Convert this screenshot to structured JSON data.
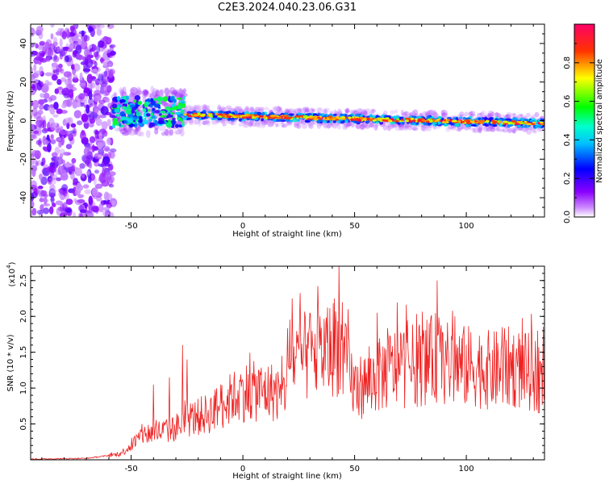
{
  "figure": {
    "title": "C2E3.2024.040.23.06.G31"
  },
  "chart_data": [
    {
      "type": "heatmap",
      "title": "",
      "xlabel": "Height of straight line (km)",
      "ylabel": "Frequency (Hz)",
      "xlim": [
        -95,
        135
      ],
      "ylim": [
        -50,
        50
      ],
      "x_ticks": [
        -50,
        0,
        50,
        100
      ],
      "y_ticks": [
        -40,
        -20,
        0,
        20,
        40
      ],
      "colorbar": {
        "label": "Normalized spectral amplitude",
        "range": [
          0,
          1
        ],
        "ticks": [
          "0.0",
          "0.2",
          "0.4",
          "0.6",
          "0.8"
        ],
        "colors": [
          "#ffffff",
          "#8b00ff",
          "#0000ff",
          "#00ffff",
          "#00ff00",
          "#ffff00",
          "#ff0000",
          "#ff0066"
        ]
      },
      "features": {
        "noise_region_x": [
          -95,
          -58
        ],
        "noise_frequency_spread": [
          -50,
          50
        ],
        "transition_region_x": [
          -58,
          -26
        ],
        "transition_frequency_range": [
          -3,
          12
        ],
        "carrier_region_x": [
          -26,
          135
        ],
        "carrier_frequency_start": 3,
        "carrier_frequency_end": -1.5
      }
    },
    {
      "type": "line",
      "title": "",
      "xlabel": "Height of straight line (km)",
      "ylabel": "SNR (10 * v/v)",
      "y_scale_label": "(x10",
      "y_scale_exponent": "4",
      "y_scale_suffix": ")",
      "xlim": [
        -95,
        135
      ],
      "ylim": [
        0,
        2.7
      ],
      "x_ticks": [
        -50,
        0,
        50,
        100
      ],
      "y_ticks": [
        "0.5",
        "1.0",
        "1.5",
        "2.0",
        "2.5"
      ],
      "series": [
        {
          "color": "#ee2222",
          "envelope": {
            "x": [
              -95,
              -70,
              -55,
              -50,
              -45,
              -40,
              -35,
              -30,
              -25,
              -20,
              -15,
              -10,
              -5,
              0,
              5,
              10,
              15,
              18,
              20,
              25,
              30,
              35,
              40,
              43,
              45,
              50,
              55,
              60,
              65,
              70,
              75,
              80,
              85,
              87,
              90,
              95,
              100,
              105,
              110,
              115,
              120,
              125,
              130,
              135
            ],
            "y": [
              0.01,
              0.02,
              0.08,
              0.2,
              0.35,
              0.38,
              0.4,
              0.45,
              0.55,
              0.6,
              0.65,
              0.75,
              0.85,
              0.95,
              0.95,
              0.95,
              0.95,
              0.85,
              1.35,
              1.4,
              1.45,
              1.5,
              1.55,
              1.6,
              1.4,
              1.0,
              1.05,
              1.15,
              1.25,
              1.3,
              1.3,
              1.35,
              1.4,
              1.45,
              1.35,
              1.3,
              1.3,
              1.3,
              1.25,
              1.25,
              1.3,
              1.25,
              1.2,
              1.1
            ]
          },
          "spikes": {
            "x": [
              -40,
              -33,
              -27,
              -25,
              -10,
              -5,
              7,
              22,
              30,
              41,
              43,
              47,
              60,
              87,
              95,
              116,
              132
            ],
            "y": [
              1.05,
              1.15,
              1.6,
              1.4,
              1.05,
              1.05,
              1.25,
              2.25,
              2.05,
              2.25,
              2.7,
              2.1,
              2.05,
              2.5,
              2.0,
              1.85,
              1.8
            ]
          }
        }
      ]
    }
  ]
}
